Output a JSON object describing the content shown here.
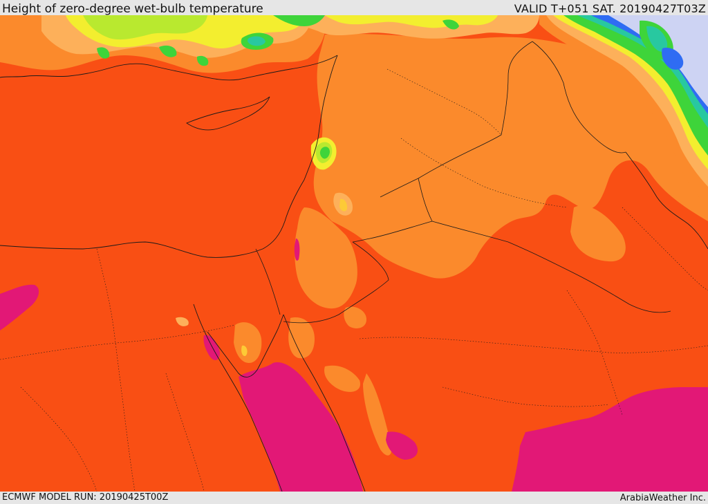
{
  "header": {
    "title": "Height of zero-degree wet-bulb temperature",
    "valid_time": "VALID T+051 SAT. 20190427T03Z"
  },
  "footer": {
    "model_run": "ECMWF MODEL RUN: 20190425T00Z",
    "credit": "ArabiaWeather Inc."
  },
  "colors": {
    "base_red_orange": "#f94f14",
    "light_orange": "#fb8a2c",
    "pale_orange": "#fdb05a",
    "yellow_orange": "#fdca36",
    "yellow": "#f3ee2f",
    "yellow_green": "#b9e92f",
    "green": "#3ed43a",
    "teal": "#28c8a0",
    "blue": "#2f6cf3",
    "lavender": "#cdd3f3",
    "magenta": "#e21876",
    "border": "#1a1a1a"
  }
}
